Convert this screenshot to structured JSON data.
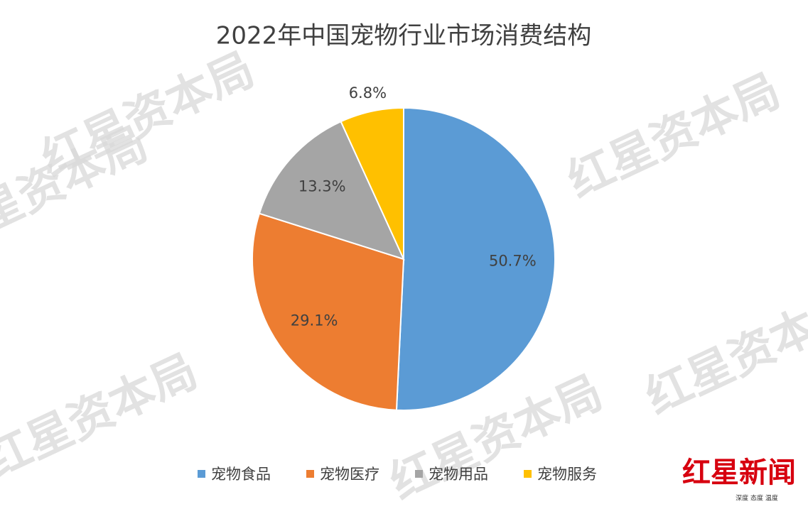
{
  "chart_data": {
    "type": "pie",
    "title": "2022年中国宠物行业市场消费结构",
    "categories": [
      "宠物食品",
      "宠物医疗",
      "宠物用品",
      "宠物服务"
    ],
    "values": [
      50.7,
      29.1,
      13.3,
      6.8
    ],
    "value_labels": [
      "50.7%",
      "29.1%",
      "13.3%",
      "6.8%"
    ],
    "colors": [
      "#5b9bd5",
      "#ed7d31",
      "#a5a5a5",
      "#ffc000"
    ],
    "legend": "bottom"
  },
  "watermark": "红星资本局",
  "logo": {
    "name": "红星新闻",
    "slogan": "深度 态度 温度"
  }
}
